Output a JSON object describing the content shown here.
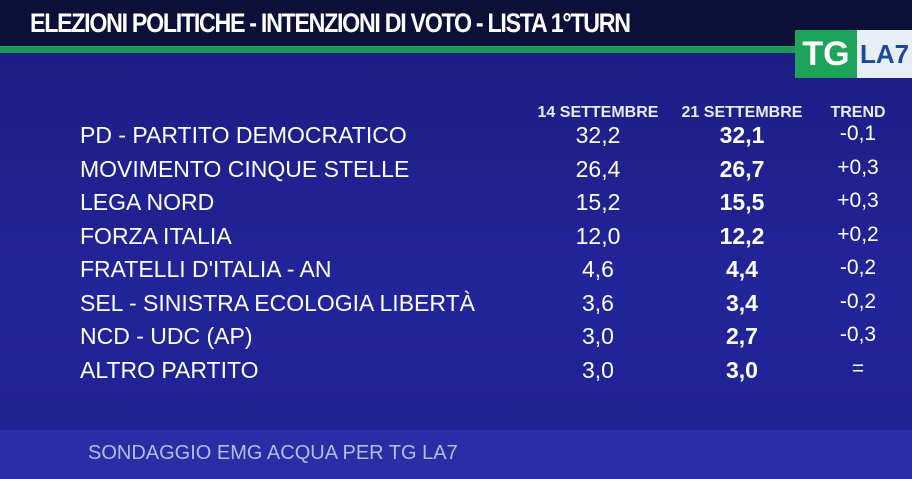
{
  "header": {
    "title": "ELEZIONI POLITICHE - INTENZIONI DI VOTO - LISTA 1°TURN",
    "logo_main": "TG",
    "logo_sub": "LA7"
  },
  "table": {
    "columns": [
      "14 SETTEMBRE",
      "21 SETTEMBRE",
      "TREND"
    ],
    "rows": [
      [
        "PD - PARTITO DEMOCRATICO",
        "32,2",
        "32,1",
        "-0,1"
      ],
      [
        "MOVIMENTO CINQUE STELLE",
        "26,4",
        "26,7",
        "+0,3"
      ],
      [
        "LEGA NORD",
        "15,2",
        "15,5",
        "+0,3"
      ],
      [
        "FORZA ITALIA",
        "12,0",
        "12,2",
        "+0,2"
      ],
      [
        "FRATELLI D'ITALIA - AN",
        "4,6",
        "4,4",
        "-0,2"
      ],
      [
        "SEL - SINISTRA ECOLOGIA LIBERTÀ",
        "3,6",
        "3,4",
        "-0,2"
      ],
      [
        "NCD - UDC (AP)",
        "3,0",
        "2,7",
        "-0,3"
      ],
      [
        "ALTRO PARTITO",
        "3,0",
        "3,0",
        "="
      ]
    ]
  },
  "footer": {
    "source": "SONDAGGIO EMG ACQUA PER TG LA7"
  }
}
